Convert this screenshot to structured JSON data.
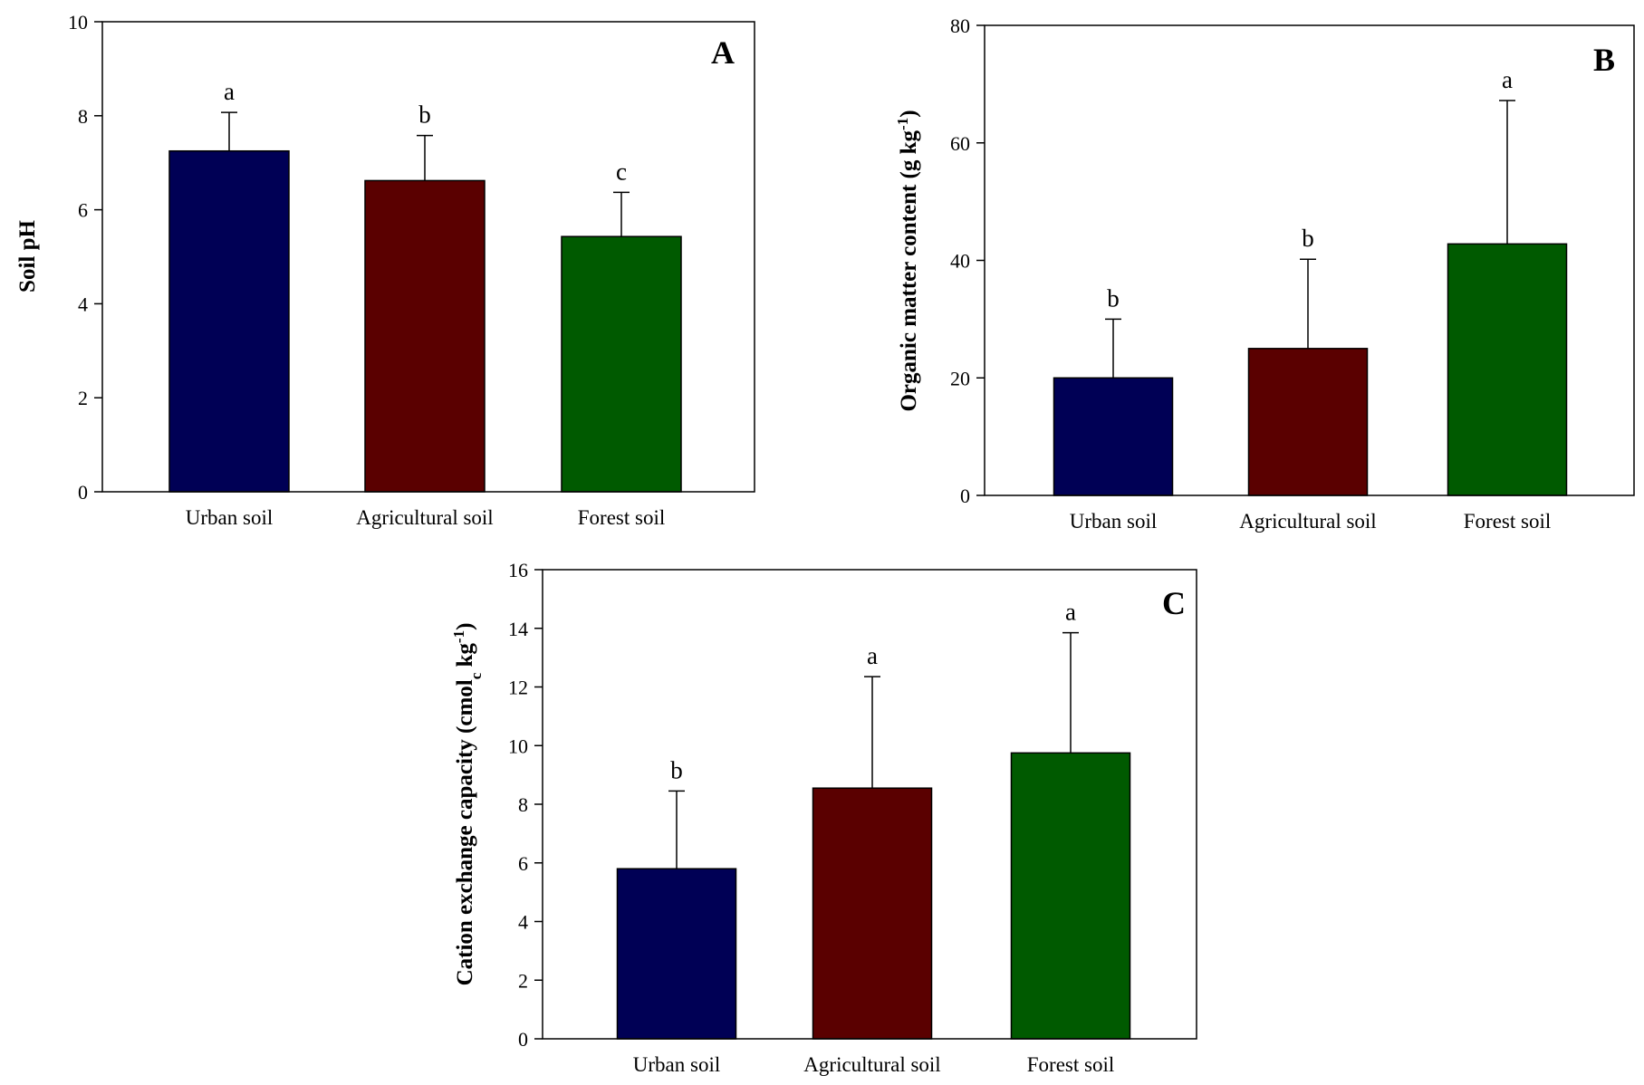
{
  "chart_data": [
    {
      "type": "bar",
      "panel": "A",
      "ylabel": "Soil pH",
      "ylim": [
        0,
        10
      ],
      "yticks": [
        0,
        2,
        4,
        6,
        8,
        10
      ],
      "categories": [
        "Urban soil",
        "Agricultural soil",
        "Forest soil"
      ],
      "values": [
        7.25,
        6.62,
        5.43
      ],
      "errors": [
        0.82,
        0.96,
        0.94
      ],
      "letters": [
        "a",
        "b",
        "c"
      ],
      "colors": [
        "#000055",
        "#5a0000",
        "#005a00"
      ]
    },
    {
      "type": "bar",
      "panel": "B",
      "ylabel": "Organic matter content (g kg",
      "ylabel_sup": "-1",
      "ylabel_end": ")",
      "ylim": [
        0,
        80
      ],
      "yticks": [
        0,
        20,
        40,
        60,
        80
      ],
      "categories": [
        "Urban soil",
        "Agricultural soil",
        "Forest soil"
      ],
      "values": [
        20,
        25,
        42.8
      ],
      "errors": [
        10,
        15.2,
        24.4
      ],
      "letters": [
        "b",
        "b",
        "a"
      ],
      "colors": [
        "#000055",
        "#5a0000",
        "#005a00"
      ]
    },
    {
      "type": "bar",
      "panel": "C",
      "ylabel": "Cation exchange capacity (cmol",
      "ylabel_sub": "c",
      "ylabel_mid": " kg",
      "ylabel_sup": "-1",
      "ylabel_end": ")",
      "ylim": [
        0,
        16
      ],
      "yticks": [
        0,
        2,
        4,
        6,
        8,
        10,
        12,
        14,
        16
      ],
      "categories": [
        "Urban soil",
        "Agricultural soil",
        "Forest soil"
      ],
      "values": [
        5.8,
        8.55,
        9.75
      ],
      "errors": [
        2.65,
        3.8,
        4.1
      ],
      "letters": [
        "b",
        "a",
        "a"
      ],
      "colors": [
        "#000055",
        "#5a0000",
        "#005a00"
      ]
    }
  ]
}
